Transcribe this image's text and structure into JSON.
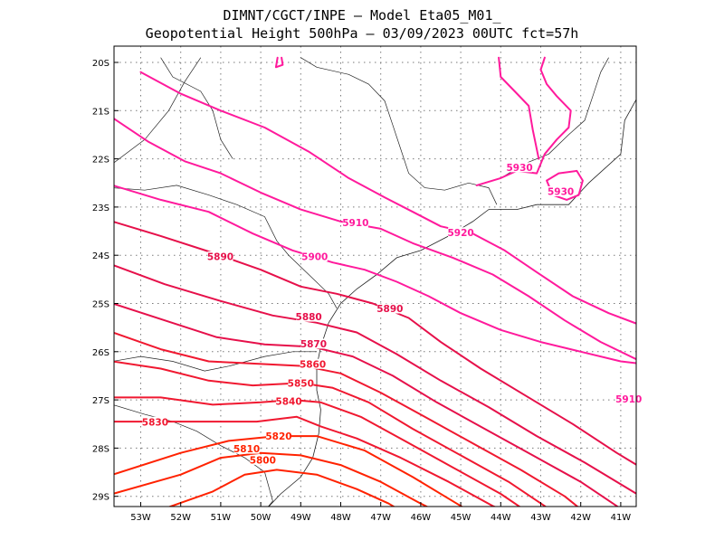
{
  "title": {
    "line1": "DIMNT/CGCT/INPE –  Model Eta05_M01_",
    "line2": "Geopotential Height 500hPa –  03/09/2023 00UTC fct=57h"
  },
  "colors": {
    "low": "#ff2200",
    "mid": "#e6104a",
    "high": "#ff1a9c",
    "land": "#222222",
    "grid": "#7a7a7a"
  },
  "chart_data": {
    "type": "contour",
    "variable": "Geopotential Height 500hPa",
    "longitude_range": [
      -53.7,
      -40.5
    ],
    "latitude_range": [
      -29.4,
      -19.9
    ],
    "contour_interval": 10,
    "grid": true,
    "lon_ticks": [
      -53,
      -52,
      -51,
      -50,
      -49,
      -48,
      -47,
      -46,
      -45,
      -44,
      -43,
      -42,
      -41
    ],
    "lon_tick_labels": [
      "53W",
      "52W",
      "51W",
      "50W",
      "49W",
      "48W",
      "47W",
      "46W",
      "45W",
      "44W",
      "43W",
      "42W",
      "41W"
    ],
    "lat_ticks": [
      -20,
      -21,
      -22,
      -23,
      -24,
      -25,
      -26,
      -27,
      -28,
      -29
    ],
    "lat_tick_labels": [
      "20S",
      "21S",
      "22S",
      "23S",
      "24S",
      "25S",
      "26S",
      "27S",
      "28S",
      "29S"
    ],
    "contours": [
      {
        "value": 5800,
        "label": "5800",
        "label_at": [
          -49.95,
          -28.29
        ],
        "path": [
          [
            -52.9,
            -29.4
          ],
          [
            -51.2,
            -28.9
          ],
          [
            -50.4,
            -28.55
          ],
          [
            -49.6,
            -28.45
          ],
          [
            -48.6,
            -28.55
          ],
          [
            -47.6,
            -28.85
          ],
          [
            -46.8,
            -29.15
          ],
          [
            -46.3,
            -29.4
          ]
        ]
      },
      {
        "value": 5810,
        "label": "5810",
        "label_at": [
          -50.35,
          -28.06
        ],
        "path": [
          [
            -53.7,
            -28.95
          ],
          [
            -52.0,
            -28.55
          ],
          [
            -51.0,
            -28.2
          ],
          [
            -50.0,
            -28.1
          ],
          [
            -49.0,
            -28.15
          ],
          [
            -48.0,
            -28.35
          ],
          [
            -47.0,
            -28.7
          ],
          [
            -46.0,
            -29.15
          ],
          [
            -45.4,
            -29.4
          ]
        ]
      },
      {
        "value": 5820,
        "label": "5820",
        "label_at": [
          -49.55,
          -27.8
        ],
        "path": [
          [
            -53.7,
            -28.55
          ],
          [
            -52.0,
            -28.1
          ],
          [
            -50.8,
            -27.85
          ],
          [
            -49.6,
            -27.75
          ],
          [
            -48.6,
            -27.75
          ],
          [
            -47.4,
            -28.05
          ],
          [
            -46.2,
            -28.6
          ],
          [
            -45.1,
            -29.15
          ],
          [
            -44.6,
            -29.4
          ]
        ]
      },
      {
        "value": 5830,
        "label": "5830",
        "label_at": [
          -52.64,
          -27.5
        ],
        "path": [
          [
            -53.7,
            -27.45
          ],
          [
            -52.6,
            -27.45
          ],
          [
            -51.3,
            -27.45
          ],
          [
            -50.1,
            -27.45
          ],
          [
            -49.1,
            -27.35
          ],
          [
            -48.5,
            -27.55
          ],
          [
            -47.6,
            -27.8
          ],
          [
            -46.5,
            -28.2
          ],
          [
            -45.3,
            -28.7
          ],
          [
            -44.2,
            -29.2
          ],
          [
            -43.6,
            -29.4
          ]
        ]
      },
      {
        "value": 5840,
        "label": "5840",
        "label_at": [
          -49.3,
          -27.07
        ],
        "path": [
          [
            -53.7,
            -26.95
          ],
          [
            -52.5,
            -26.95
          ],
          [
            -51.2,
            -27.1
          ],
          [
            -50.0,
            -27.05
          ],
          [
            -49.2,
            -27.0
          ],
          [
            -48.5,
            -27.05
          ],
          [
            -47.5,
            -27.35
          ],
          [
            -46.4,
            -27.85
          ],
          [
            -45.2,
            -28.4
          ],
          [
            -44.0,
            -28.95
          ],
          [
            -43.2,
            -29.4
          ]
        ]
      },
      {
        "value": 5850,
        "label": "5850",
        "label_at": [
          -49.0,
          -26.7
        ],
        "path": [
          [
            -53.7,
            -26.2
          ],
          [
            -52.5,
            -26.35
          ],
          [
            -51.3,
            -26.6
          ],
          [
            -50.2,
            -26.7
          ],
          [
            -49.0,
            -26.65
          ],
          [
            -48.2,
            -26.75
          ],
          [
            -47.3,
            -27.05
          ],
          [
            -46.2,
            -27.6
          ],
          [
            -45.0,
            -28.15
          ],
          [
            -43.8,
            -28.7
          ],
          [
            -42.9,
            -29.2
          ],
          [
            -42.6,
            -29.4
          ]
        ]
      },
      {
        "value": 5860,
        "label": "5860",
        "label_at": [
          -48.7,
          -26.3
        ],
        "path": [
          [
            -53.7,
            -25.6
          ],
          [
            -52.5,
            -25.95
          ],
          [
            -51.3,
            -26.2
          ],
          [
            -50.1,
            -26.25
          ],
          [
            -48.9,
            -26.3
          ],
          [
            -48.0,
            -26.45
          ],
          [
            -47.0,
            -26.85
          ],
          [
            -45.9,
            -27.35
          ],
          [
            -44.7,
            -27.9
          ],
          [
            -43.5,
            -28.45
          ],
          [
            -42.4,
            -29.0
          ],
          [
            -41.8,
            -29.4
          ]
        ]
      },
      {
        "value": 5870,
        "label": "5870",
        "label_at": [
          -48.68,
          -25.88
        ],
        "path": [
          [
            -53.7,
            -25.0
          ],
          [
            -52.4,
            -25.35
          ],
          [
            -51.1,
            -25.7
          ],
          [
            -49.9,
            -25.85
          ],
          [
            -48.7,
            -25.9
          ],
          [
            -47.7,
            -26.1
          ],
          [
            -46.7,
            -26.5
          ],
          [
            -45.6,
            -27.05
          ],
          [
            -44.4,
            -27.6
          ],
          [
            -43.2,
            -28.15
          ],
          [
            -42.0,
            -28.7
          ],
          [
            -41.1,
            -29.2
          ],
          [
            -40.8,
            -29.4
          ]
        ]
      },
      {
        "value": 5880,
        "label": "5880",
        "label_at": [
          -48.8,
          -25.32
        ],
        "path": [
          [
            -53.7,
            -24.2
          ],
          [
            -52.4,
            -24.6
          ],
          [
            -51.0,
            -24.95
          ],
          [
            -49.7,
            -25.25
          ],
          [
            -48.6,
            -25.4
          ],
          [
            -47.6,
            -25.6
          ],
          [
            -46.6,
            -26.05
          ],
          [
            -45.5,
            -26.6
          ],
          [
            -44.3,
            -27.15
          ],
          [
            -43.1,
            -27.75
          ],
          [
            -41.9,
            -28.3
          ],
          [
            -40.9,
            -28.8
          ],
          [
            -40.5,
            -29.0
          ]
        ]
      },
      {
        "value": 5890,
        "label": "5890",
        "label_at": [
          -46.77,
          -25.15
        ],
        "path": [
          [
            -53.7,
            -23.3
          ],
          [
            -52.5,
            -23.6
          ],
          [
            -51.2,
            -23.95
          ],
          [
            -50.0,
            -24.3
          ],
          [
            -49.0,
            -24.65
          ],
          [
            -48.1,
            -24.8
          ],
          [
            -47.2,
            -25.0
          ],
          [
            -46.3,
            -25.3
          ],
          [
            -45.5,
            -25.8
          ],
          [
            -44.5,
            -26.35
          ],
          [
            -43.4,
            -26.9
          ],
          [
            -42.2,
            -27.5
          ],
          [
            -41.1,
            -28.1
          ],
          [
            -40.5,
            -28.4
          ]
        ]
      },
      {
        "value": 5890,
        "label": "5890",
        "label_at": [
          -51.01,
          -24.07
        ],
        "path": []
      },
      {
        "value": 5900,
        "label": "5900",
        "label_at": [
          -48.65,
          -24.07
        ],
        "path": [
          [
            -53.7,
            -22.55
          ],
          [
            -52.5,
            -22.85
          ],
          [
            -51.3,
            -23.1
          ],
          [
            -50.2,
            -23.55
          ],
          [
            -49.2,
            -23.9
          ],
          [
            -48.2,
            -24.15
          ],
          [
            -47.4,
            -24.3
          ],
          [
            -46.6,
            -24.55
          ],
          [
            -45.8,
            -24.85
          ],
          [
            -45.0,
            -25.2
          ],
          [
            -44.0,
            -25.55
          ],
          [
            -43.0,
            -25.8
          ],
          [
            -42.0,
            -26.0
          ],
          [
            -41.0,
            -26.2
          ],
          [
            -40.5,
            -26.25
          ]
        ]
      },
      {
        "value": 5910,
        "label": "5910",
        "label_at": [
          -47.63,
          -23.37
        ],
        "path": [
          [
            -53.7,
            -21.15
          ],
          [
            -52.8,
            -21.65
          ],
          [
            -51.9,
            -22.05
          ],
          [
            -51.0,
            -22.3
          ],
          [
            -50.0,
            -22.7
          ],
          [
            -49.0,
            -23.05
          ],
          [
            -48.0,
            -23.3
          ],
          [
            -47.0,
            -23.45
          ],
          [
            -46.2,
            -23.75
          ],
          [
            -45.2,
            -24.05
          ],
          [
            -44.2,
            -24.4
          ],
          [
            -43.3,
            -24.85
          ],
          [
            -42.4,
            -25.35
          ],
          [
            -41.5,
            -25.8
          ],
          [
            -40.5,
            -26.2
          ]
        ]
      },
      {
        "value": 5910,
        "label": "5910",
        "label_at": [
          -40.8,
          -27.03
        ],
        "path": []
      },
      {
        "value": 5920,
        "label": "5920",
        "label_at": [
          -45.0,
          -23.57
        ],
        "path": [
          [
            -53.0,
            -20.2
          ],
          [
            -52.0,
            -20.65
          ],
          [
            -51.0,
            -21.0
          ],
          [
            -49.9,
            -21.35
          ],
          [
            -48.8,
            -21.85
          ],
          [
            -47.8,
            -22.4
          ],
          [
            -46.9,
            -22.8
          ],
          [
            -46.2,
            -23.1
          ],
          [
            -45.5,
            -23.4
          ],
          [
            -44.7,
            -23.55
          ],
          [
            -43.9,
            -23.9
          ],
          [
            -43.1,
            -24.35
          ],
          [
            -42.2,
            -24.85
          ],
          [
            -41.3,
            -25.2
          ],
          [
            -40.5,
            -25.45
          ]
        ]
      },
      {
        "value": 5930,
        "label": "5930",
        "label_at": [
          -43.53,
          -22.22
        ],
        "path": [
          [
            -44.6,
            -22.55
          ],
          [
            -44.0,
            -22.4
          ],
          [
            -43.6,
            -22.25
          ],
          [
            -43.1,
            -22.3
          ],
          [
            -42.9,
            -21.9
          ],
          [
            -42.6,
            -21.6
          ],
          [
            -42.3,
            -21.35
          ],
          [
            -42.25,
            -21.0
          ],
          [
            -42.6,
            -20.7
          ],
          [
            -42.85,
            -20.45
          ],
          [
            -43.0,
            -20.15
          ],
          [
            -42.9,
            -19.9
          ]
        ]
      },
      {
        "value": 5930,
        "label": "5930",
        "label_at": [
          -42.5,
          -22.72
        ],
        "path": [
          [
            -42.85,
            -22.45
          ],
          [
            -42.55,
            -22.3
          ],
          [
            -42.1,
            -22.25
          ],
          [
            -41.95,
            -22.45
          ],
          [
            -42.05,
            -22.75
          ],
          [
            -42.35,
            -22.85
          ],
          [
            -42.7,
            -22.75
          ],
          [
            -42.85,
            -22.45
          ]
        ]
      },
      {
        "value": 5930,
        "label": "",
        "label_at": null,
        "path": [
          [
            -49.58,
            -19.9
          ],
          [
            -49.62,
            -20.1
          ],
          [
            -49.45,
            -20.05
          ],
          [
            -49.48,
            -19.9
          ]
        ]
      },
      {
        "value": 5930,
        "label": "",
        "label_at": null,
        "path": [
          [
            -44.05,
            -19.9
          ],
          [
            -44.0,
            -20.3
          ],
          [
            -43.65,
            -20.6
          ],
          [
            -43.3,
            -20.9
          ],
          [
            -43.2,
            -21.4
          ],
          [
            -43.05,
            -22.0
          ]
        ]
      },
      {
        "value": 5930,
        "label": "",
        "label_at": null,
        "path": [
          [
            -40.5,
            -20.45
          ],
          [
            -40.52,
            -20.3
          ],
          [
            -40.48,
            -20.15
          ]
        ]
      }
    ]
  }
}
